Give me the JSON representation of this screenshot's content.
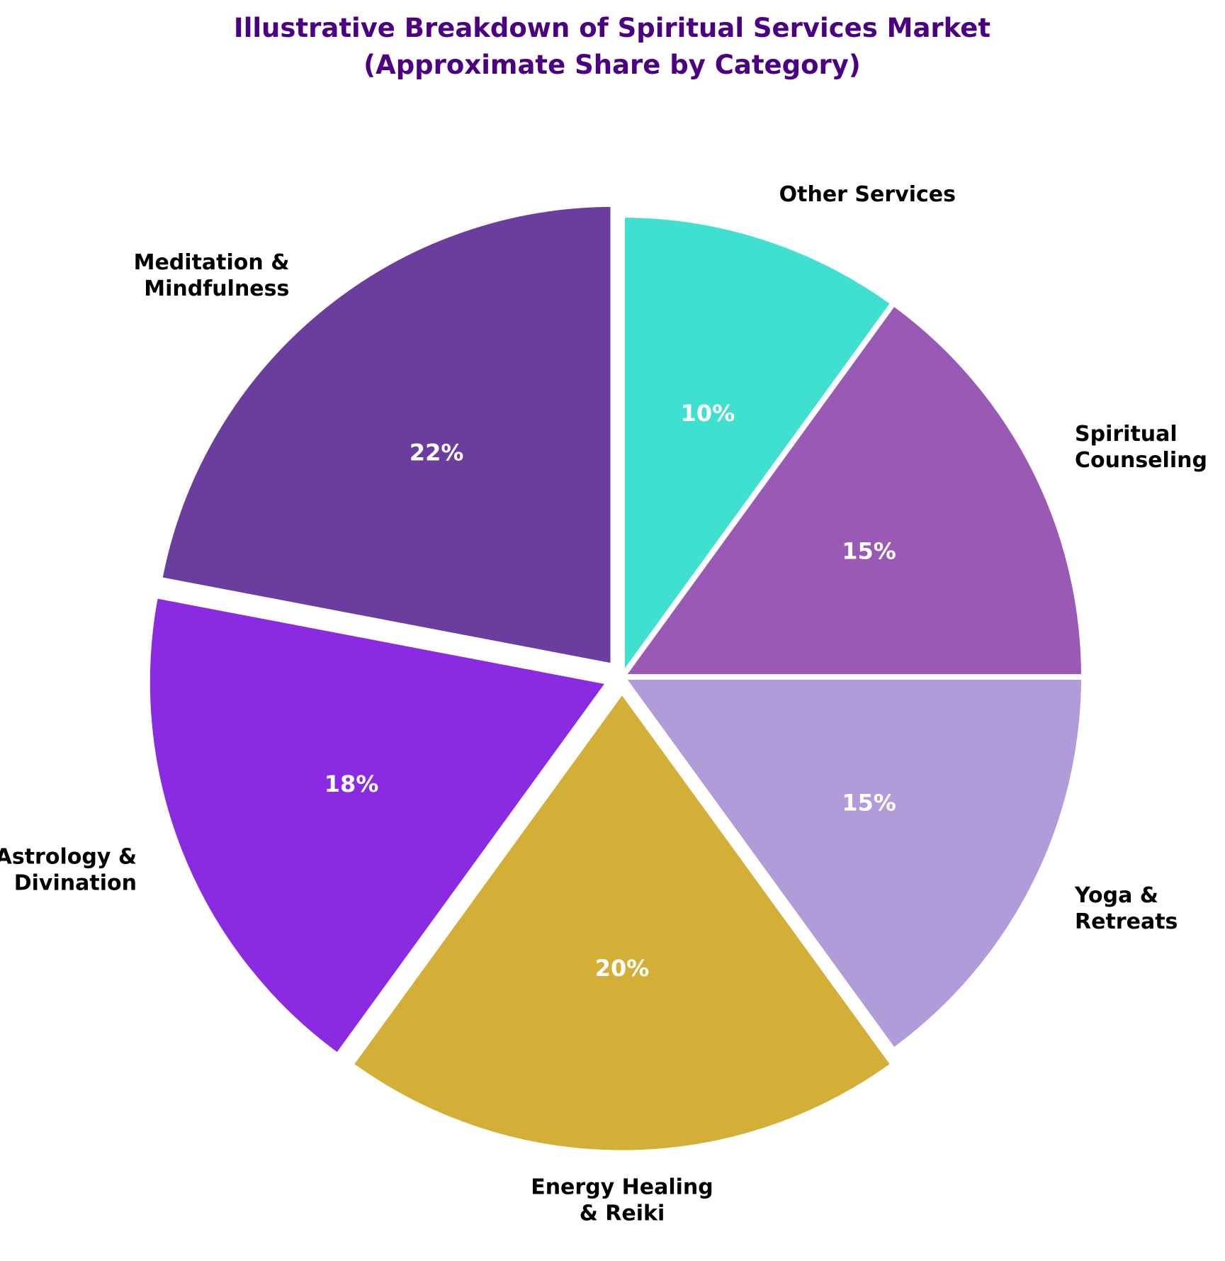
{
  "chart_data": {
    "type": "pie",
    "title": "Illustrative Breakdown of Spiritual Services Market",
    "subtitle": "(Approximate Share by Category)",
    "title_color": "#4B0082",
    "start_angle_deg": 90,
    "direction": "clockwise",
    "slices": [
      {
        "label_lines": [
          "Other Services"
        ],
        "value": 10,
        "display": "10%",
        "color": "#40E0D0",
        "explode": 0
      },
      {
        "label_lines": [
          "Spiritual",
          "Counseling"
        ],
        "value": 15,
        "display": "15%",
        "color": "#9B59B6",
        "explode": 0
      },
      {
        "label_lines": [
          "Yoga &",
          "Retreats"
        ],
        "value": 15,
        "display": "15%",
        "color": "#B19CD9",
        "explode": 0
      },
      {
        "label_lines": [
          "Energy Healing",
          "& Reiki"
        ],
        "value": 20,
        "display": "20%",
        "color": "#D4AF37",
        "explode": 0.03
      },
      {
        "label_lines": [
          "Astrology &",
          "Divination"
        ],
        "value": 18,
        "display": "18%",
        "color": "#8A2BE2",
        "explode": 0.03
      },
      {
        "label_lines": [
          "Meditation &",
          "Mindfulness"
        ],
        "value": 22,
        "display": "22%",
        "color": "#6A3D9F",
        "explode": 0.03
      }
    ]
  }
}
